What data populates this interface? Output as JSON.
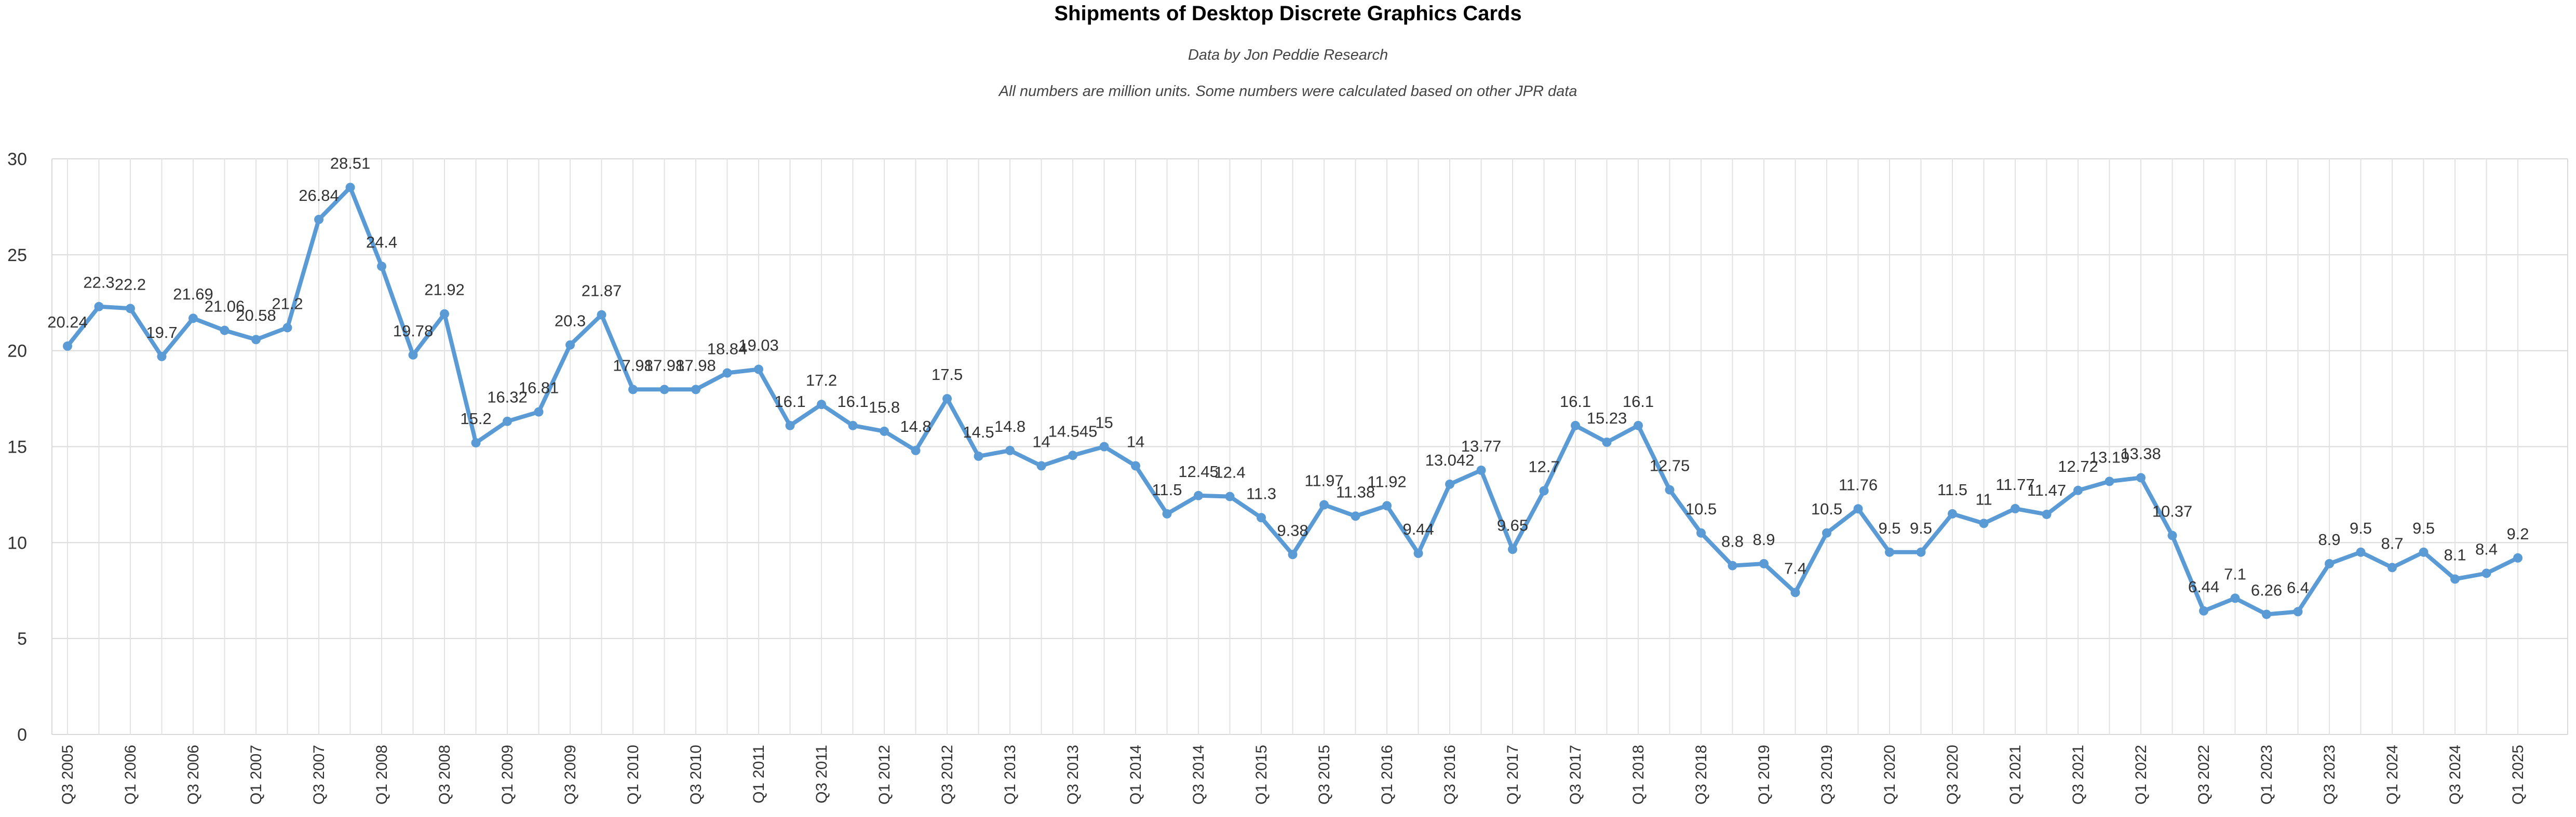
{
  "chart_data": {
    "type": "line",
    "title": "Shipments of Desktop Discrete Graphics Cards",
    "subtitle": "Data by Jon Peddie Research",
    "note": "All numbers are million units. Some numbers were calculated based on other JPR data",
    "ylim": [
      0,
      30
    ],
    "yticks": [
      0,
      5,
      10,
      15,
      20,
      25,
      30
    ],
    "grid": true,
    "line_color": "#5b9bd5",
    "x_tick_labels": [
      "Q3 2005",
      "Q1 2006",
      "Q3 2006",
      "Q1 2007",
      "Q3 2007",
      "Q1 2008",
      "Q3 2008",
      "Q1 2009",
      "Q3 2009",
      "Q1 2010",
      "Q3 2010",
      "Q1 2011",
      "Q3 2011",
      "Q1 2012",
      "Q3 2012",
      "Q1 2013",
      "Q3 2013",
      "Q1 2014",
      "Q3 2014",
      "Q1 2015",
      "Q3 2015",
      "Q1 2016",
      "Q3 2016",
      "Q1 2017",
      "Q3 2017",
      "Q1 2018",
      "Q3 2018",
      "Q1 2019",
      "Q3 2019",
      "Q1 2020",
      "Q3 2020",
      "Q1 2021",
      "Q3 2021",
      "Q1 2022",
      "Q3 2022",
      "Q1 2023",
      "Q3 2023",
      "Q1 2024",
      "Q3 2024",
      "Q1 2025"
    ],
    "series": [
      {
        "values": [
          20.24,
          22.3,
          22.2,
          19.7,
          21.69,
          21.06,
          20.58,
          21.2,
          26.84,
          28.51,
          24.4,
          19.78,
          21.92,
          15.2,
          16.32,
          16.81,
          20.3,
          21.87,
          17.98,
          17.98,
          17.98,
          18.84,
          19.03,
          16.1,
          17.2,
          16.1,
          15.8,
          14.8,
          17.5,
          14.5,
          14.8,
          14,
          14.545,
          15,
          14,
          11.5,
          12.45,
          12.4,
          11.3,
          9.38,
          11.97,
          11.38,
          11.92,
          9.44,
          13.042,
          13.77,
          9.65,
          12.7,
          16.1,
          15.23,
          16.1,
          12.75,
          10.5,
          8.8,
          8.9,
          7.4,
          10.5,
          11.76,
          9.5,
          9.5,
          11.5,
          11,
          11.77,
          11.47,
          12.72,
          13.19,
          13.38,
          10.37,
          6.44,
          7.1,
          6.26,
          6.4,
          8.9,
          9.5,
          8.7,
          9.5,
          8.1,
          8.4,
          9.2
        ],
        "labels": [
          "20.24",
          "22.3",
          "22.2",
          "19.7",
          "21.69",
          "21.06",
          "20.58",
          "21.2",
          "26.84",
          "28.51",
          "24.4",
          "19.78",
          "21.92",
          "15.2",
          "16.32",
          "16.81",
          "20.3",
          "21.87",
          "17.98",
          "17.98",
          "17.98",
          "18.84",
          "19.03",
          "16.1",
          "17.2",
          "16.1",
          "15.8",
          "14.8",
          "17.5",
          "14.5",
          "14.8",
          "14",
          "14.545",
          "15",
          "14",
          "11.5",
          "12.45",
          "12.4",
          "11.3",
          "9.38",
          "11.97",
          "11.38",
          "11.92",
          "9.44",
          "13.042",
          "13.77",
          "9.65",
          "12.7",
          "16.1",
          "15.23",
          "16.1",
          "12.75",
          "10.5",
          "8.8",
          "8.9",
          "7.4",
          "10.5",
          "11.76",
          "9.5",
          "9.5",
          "11.5",
          "11",
          "11.77",
          "11.47",
          "12.72",
          "13.19",
          "13.38",
          "10.37",
          "6.44",
          "7.1",
          "6.26",
          "6.4",
          "8.9",
          "9.5",
          "8.7",
          "9.5",
          "8.1",
          "8.4",
          "9.2"
        ]
      }
    ]
  }
}
